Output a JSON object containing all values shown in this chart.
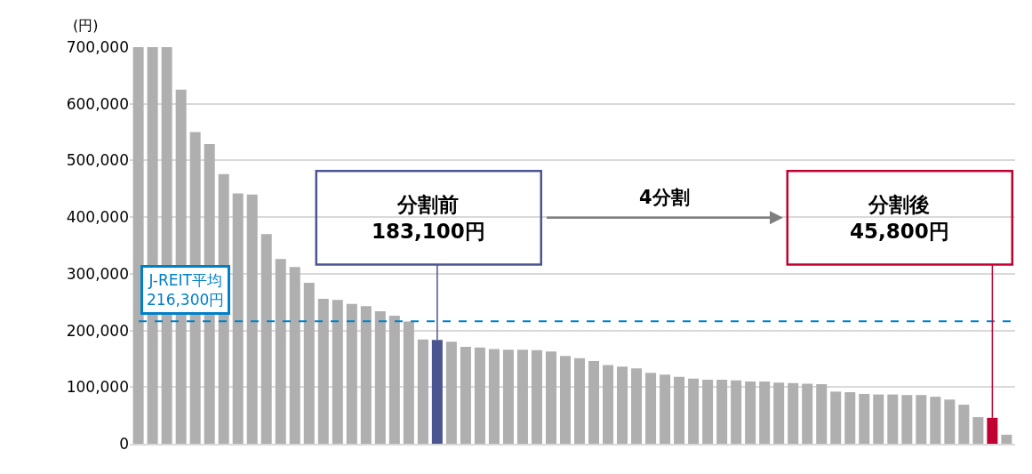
{
  "chart_data": {
    "type": "bar",
    "ylabel": "(円)",
    "categories": [
      null,
      null,
      null,
      null,
      null,
      null,
      null,
      null,
      null,
      null,
      null,
      null,
      null,
      null,
      null,
      null,
      null,
      null,
      null,
      null,
      null,
      null,
      null,
      null,
      null,
      null,
      null,
      null,
      null,
      null,
      null,
      null,
      null,
      null,
      null,
      null,
      null,
      null,
      null,
      null,
      null,
      null,
      null,
      null,
      null,
      null,
      null,
      null,
      null,
      null,
      null,
      null,
      null,
      null,
      null,
      null,
      null,
      null,
      null,
      null,
      null,
      null
    ],
    "values": [
      700000,
      700000,
      700000,
      625000,
      550000,
      529000,
      476000,
      442000,
      440000,
      370000,
      326000,
      312000,
      284000,
      256000,
      254000,
      247000,
      243000,
      234000,
      226000,
      216000,
      184000,
      183100,
      180000,
      171000,
      170000,
      167000,
      166000,
      166000,
      165000,
      163000,
      155000,
      151000,
      146000,
      139000,
      136000,
      133000,
      125000,
      122000,
      118000,
      115000,
      113000,
      113000,
      112000,
      110000,
      110000,
      108000,
      107000,
      106000,
      105000,
      92000,
      91000,
      88000,
      87000,
      87000,
      86000,
      86000,
      83000,
      78000,
      69000,
      47000,
      45800,
      16000
    ],
    "colors": [
      "#afafaf",
      "#afafaf",
      "#afafaf",
      "#afafaf",
      "#afafaf",
      "#afafaf",
      "#afafaf",
      "#afafaf",
      "#afafaf",
      "#afafaf",
      "#afafaf",
      "#afafaf",
      "#afafaf",
      "#afafaf",
      "#afafaf",
      "#afafaf",
      "#afafaf",
      "#afafaf",
      "#afafaf",
      "#afafaf",
      "#afafaf",
      "#4b5690",
      "#afafaf",
      "#afafaf",
      "#afafaf",
      "#afafaf",
      "#afafaf",
      "#afafaf",
      "#afafaf",
      "#afafaf",
      "#afafaf",
      "#afafaf",
      "#afafaf",
      "#afafaf",
      "#afafaf",
      "#afafaf",
      "#afafaf",
      "#afafaf",
      "#afafaf",
      "#afafaf",
      "#afafaf",
      "#afafaf",
      "#afafaf",
      "#afafaf",
      "#afafaf",
      "#afafaf",
      "#afafaf",
      "#afafaf",
      "#afafaf",
      "#afafaf",
      "#afafaf",
      "#afafaf",
      "#afafaf",
      "#afafaf",
      "#afafaf",
      "#afafaf",
      "#afafaf",
      "#afafaf",
      "#afafaf",
      "#afafaf",
      "#c00030",
      "#afafaf"
    ],
    "ylim": [
      0,
      700000
    ],
    "yticks": [
      {
        "value": 0,
        "label": "0"
      },
      {
        "value": 100000,
        "label": "100,000"
      },
      {
        "value": 200000,
        "label": "200,000"
      },
      {
        "value": 300000,
        "label": "300,000"
      },
      {
        "value": 400000,
        "label": "400,000"
      },
      {
        "value": 500000,
        "label": "500,000"
      },
      {
        "value": 600000,
        "label": "600,000"
      },
      {
        "value": 700000,
        "label": "700,000"
      }
    ],
    "grid": "y",
    "ref_lines": [
      {
        "axis": "y",
        "value": 216300,
        "label": "J-REIT平均\n216,300円",
        "color": "#0080c8",
        "line_style": "dashed"
      }
    ],
    "annotations": [
      "分割前\n183,100円",
      "4分割",
      "分割後\n45,800円"
    ]
  }
}
